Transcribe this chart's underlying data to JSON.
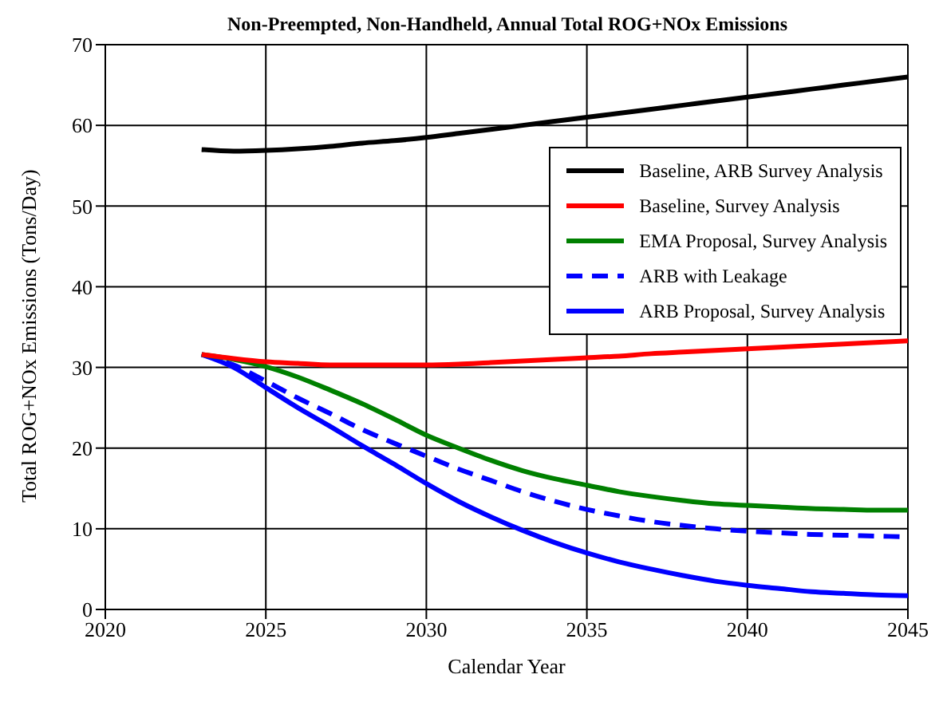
{
  "chart_data": {
    "type": "line",
    "title": "Non-Preempted, Non-Handheld, Annual Total ROG+NOx Emissions",
    "xlabel": "Calendar Year",
    "ylabel": "Total ROG+NOx Emissions (Tons/Day)",
    "x": [
      2023,
      2024,
      2025,
      2026,
      2027,
      2028,
      2029,
      2030,
      2031,
      2032,
      2033,
      2034,
      2035,
      2036,
      2037,
      2038,
      2039,
      2040,
      2041,
      2042,
      2043,
      2044,
      2045
    ],
    "series": [
      {
        "name": "Baseline, ARB Survey Analysis",
        "color": "#000000",
        "line_style": "solid",
        "values": [
          57,
          56.8,
          56.9,
          57.1,
          57.4,
          57.8,
          58.1,
          58.5,
          59,
          59.5,
          60,
          60.5,
          61,
          61.5,
          62,
          62.5,
          63,
          63.5,
          64,
          64.5,
          65,
          65.5,
          66
        ]
      },
      {
        "name": "Baseline, Survey Analysis",
        "color": "#ff0000",
        "line_style": "solid",
        "values": [
          31.6,
          31.1,
          30.7,
          30.5,
          30.3,
          30.3,
          30.3,
          30.3,
          30.4,
          30.6,
          30.8,
          31,
          31.2,
          31.4,
          31.7,
          31.9,
          32.1,
          32.3,
          32.5,
          32.7,
          32.9,
          33.1,
          33.3
        ]
      },
      {
        "name": "EMA Proposal, Survey Analysis",
        "color": "#008000",
        "line_style": "solid",
        "values": [
          31.6,
          31,
          30.1,
          28.8,
          27.2,
          25.5,
          23.6,
          21.6,
          20,
          18.5,
          17.2,
          16.2,
          15.4,
          14.6,
          14,
          13.5,
          13.1,
          12.9,
          12.7,
          12.5,
          12.4,
          12.3,
          12.3
        ]
      },
      {
        "name": "ARB with Leakage",
        "color": "#0000ff",
        "line_style": "dashed",
        "values": [
          31.6,
          30.3,
          28.3,
          26.2,
          24.3,
          22.3,
          20.6,
          19,
          17.4,
          16,
          14.6,
          13.4,
          12.4,
          11.6,
          10.9,
          10.4,
          10,
          9.7,
          9.5,
          9.3,
          9.2,
          9.1,
          9
        ]
      },
      {
        "name": "ARB Proposal, Survey Analysis",
        "color": "#0000ff",
        "line_style": "solid",
        "values": [
          31.6,
          30,
          27.5,
          25,
          22.7,
          20.3,
          18,
          15.6,
          13.4,
          11.5,
          9.8,
          8.3,
          7,
          5.9,
          5,
          4.2,
          3.5,
          3,
          2.6,
          2.2,
          2,
          1.8,
          1.7
        ]
      }
    ],
    "xlim": [
      2020,
      2045
    ],
    "xticks": [
      2020,
      2025,
      2030,
      2035,
      2040,
      2045
    ],
    "ylim": [
      0,
      70
    ],
    "yticks": [
      0,
      10,
      20,
      30,
      40,
      50,
      60,
      70
    ],
    "grid": true,
    "legend": "top right",
    "marker": "none"
  }
}
